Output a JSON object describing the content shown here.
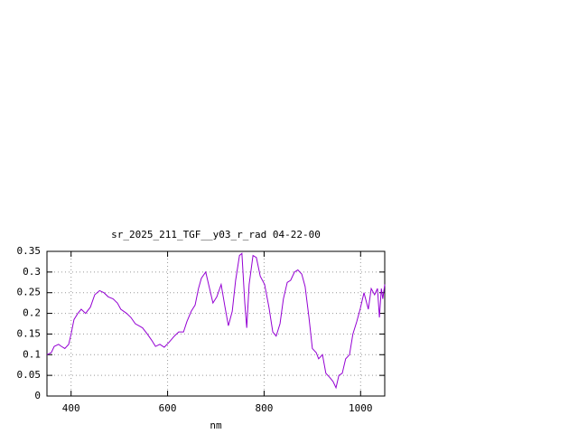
{
  "chart_data": {
    "type": "line",
    "title": "sr_2025_211_TGF__y03_r_rad 04-22-00",
    "x_label": "nm",
    "xlim": [
      350,
      1050
    ],
    "xticks": [
      400,
      600,
      800,
      1000
    ],
    "ylim": [
      0,
      0.35
    ],
    "yticks": [
      0,
      0.05,
      0.1,
      0.15,
      0.2,
      0.25,
      0.3,
      0.35
    ],
    "grid": true,
    "x": [
      350,
      359,
      365,
      374,
      380,
      387,
      395,
      400,
      406,
      414,
      421,
      430,
      440,
      449,
      459,
      468,
      477,
      487,
      496,
      503,
      515,
      524,
      533,
      548,
      558,
      567,
      575,
      584,
      593,
      603,
      614,
      623,
      633,
      640,
      649,
      657,
      664,
      670,
      679,
      687,
      694,
      702,
      711,
      719,
      726,
      734,
      741,
      749,
      754,
      760,
      764,
      769,
      777,
      784,
      792,
      801,
      810,
      818,
      825,
      833,
      840,
      848,
      855,
      863,
      870,
      878,
      885,
      893,
      900,
      908,
      913,
      921,
      928,
      936,
      943,
      949,
      955,
      962,
      969,
      977,
      984,
      992,
      999,
      1007,
      1016,
      1022,
      1029,
      1035,
      1039,
      1043,
      1046,
      1050
    ],
    "series": [
      {
        "color": "#9400d3",
        "values": [
          0.1,
          0.105,
          0.12,
          0.125,
          0.12,
          0.115,
          0.125,
          0.15,
          0.185,
          0.2,
          0.21,
          0.2,
          0.215,
          0.245,
          0.255,
          0.25,
          0.24,
          0.235,
          0.225,
          0.21,
          0.2,
          0.19,
          0.175,
          0.165,
          0.15,
          0.135,
          0.12,
          0.125,
          0.118,
          0.13,
          0.145,
          0.155,
          0.155,
          0.18,
          0.205,
          0.22,
          0.26,
          0.285,
          0.3,
          0.26,
          0.225,
          0.24,
          0.27,
          0.215,
          0.17,
          0.205,
          0.28,
          0.34,
          0.345,
          0.225,
          0.165,
          0.27,
          0.34,
          0.335,
          0.29,
          0.27,
          0.215,
          0.155,
          0.145,
          0.175,
          0.235,
          0.275,
          0.28,
          0.3,
          0.305,
          0.295,
          0.265,
          0.19,
          0.115,
          0.105,
          0.09,
          0.1,
          0.055,
          0.045,
          0.035,
          0.02,
          0.05,
          0.055,
          0.09,
          0.1,
          0.15,
          0.18,
          0.21,
          0.25,
          0.21,
          0.26,
          0.245,
          0.26,
          0.19,
          0.26,
          0.235,
          0.27
        ]
      }
    ]
  }
}
